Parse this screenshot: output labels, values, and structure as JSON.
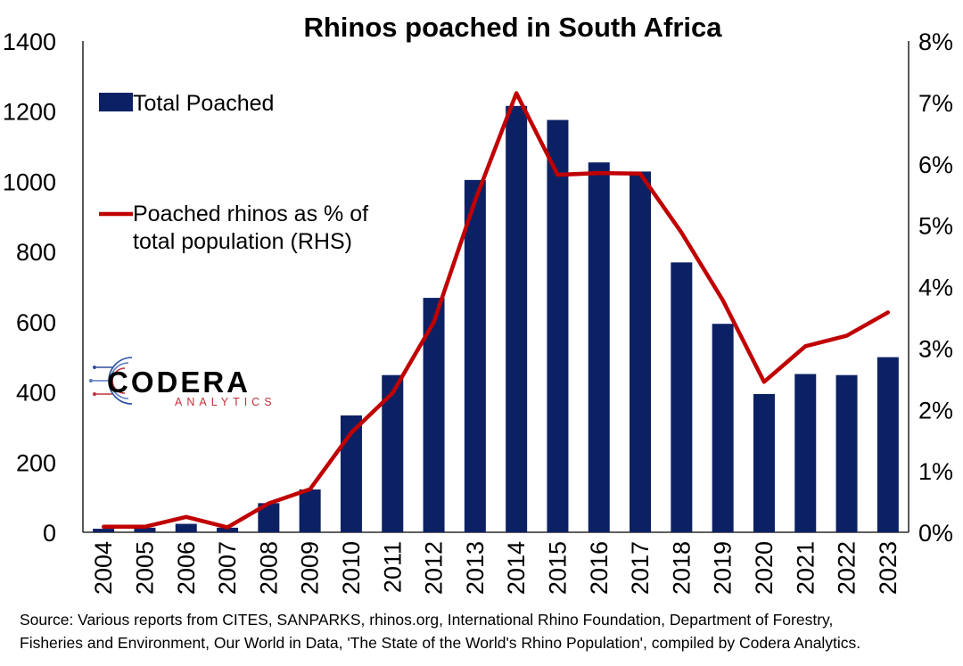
{
  "chart_data": {
    "type": "bar+line",
    "title": "Rhinos poached in South Africa",
    "categories": [
      "2004",
      "2005",
      "2006",
      "2007",
      "2008",
      "2009",
      "2010",
      "2011",
      "2012",
      "2013",
      "2014",
      "2015",
      "2016",
      "2017",
      "2018",
      "2019",
      "2020",
      "2021",
      "2022",
      "2023"
    ],
    "series": [
      {
        "name": "Total Poached",
        "type": "bar",
        "axis": "left",
        "color": "#0c2164",
        "values": [
          10,
          13,
          24,
          13,
          83,
          122,
          333,
          448,
          668,
          1004,
          1215,
          1175,
          1054,
          1028,
          769,
          594,
          394,
          451,
          448,
          499
        ]
      },
      {
        "name": "Poached rhinos as % of total population (RHS)",
        "legend_lines": [
          "Poached rhinos as % of",
          "total population (RHS)"
        ],
        "type": "line",
        "axis": "right",
        "color": "#c00000",
        "values": [
          0.09,
          0.09,
          0.25,
          0.08,
          0.47,
          0.7,
          1.62,
          2.27,
          3.42,
          5.4,
          7.15,
          5.82,
          5.85,
          5.84,
          4.88,
          3.78,
          2.45,
          3.03,
          3.2,
          3.58
        ]
      }
    ],
    "yleft": {
      "min": 0,
      "max": 1400,
      "ticks": [
        "0",
        "200",
        "400",
        "600",
        "800",
        "1000",
        "1200",
        "1400"
      ]
    },
    "yright": {
      "min": 0,
      "max": 8,
      "ticks": [
        "0%",
        "1%",
        "2%",
        "3%",
        "4%",
        "5%",
        "6%",
        "7%",
        "8%"
      ]
    },
    "grid": false,
    "legend": "top-left"
  },
  "logo": {
    "name": "CODERA",
    "subtitle": "ANALYTICS"
  },
  "source_lines": [
    "Source: Various reports from CITES, SANPARKS, rhinos.org, International Rhino Foundation, Department of Forestry,",
    "Fisheries and Environment, Our World in Data, 'The State of the World's Rhino Population', compiled by Codera Analytics."
  ]
}
